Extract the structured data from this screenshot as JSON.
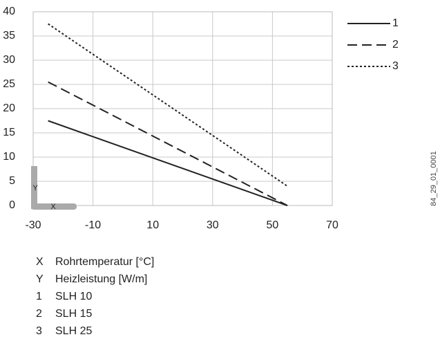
{
  "chart_data": {
    "type": "line",
    "x_axis_key": "X",
    "xlabel": "Rohrtemperatur [°C]",
    "y_axis_key": "Y",
    "ylabel": "Heizleistung [W/m]",
    "figure_id": "84_29_01_0001",
    "x": [
      -25,
      55
    ],
    "series": [
      {
        "name": "1",
        "description": "SLH 10",
        "color": "#222222",
        "dash": "solid",
        "values": [
          17.5,
          0
        ]
      },
      {
        "name": "2",
        "description": "SLH 15",
        "color": "#222222",
        "dash": "dashed",
        "values": [
          25.5,
          0
        ]
      },
      {
        "name": "3",
        "description": "SLH 25",
        "color": "#222222",
        "dash": "dotted",
        "values": [
          37.5,
          4
        ]
      }
    ],
    "xlim": [
      -30,
      70
    ],
    "xticks": [
      -30,
      -10,
      10,
      30,
      50,
      70
    ],
    "ylim": [
      0,
      40
    ],
    "yticks": [
      0,
      5,
      10,
      15,
      20,
      25,
      30,
      35,
      40
    ],
    "grid": true,
    "legend": "right"
  }
}
